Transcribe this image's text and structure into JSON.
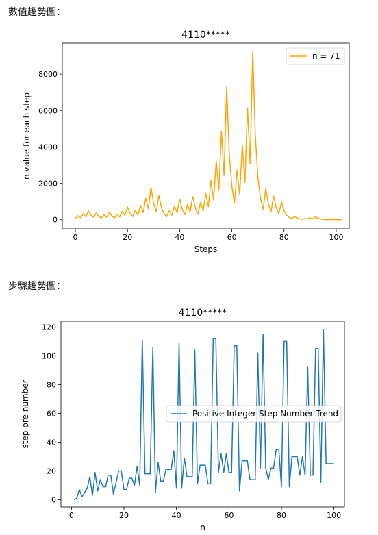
{
  "labels": {
    "section1": "數值趨勢圖：",
    "section2": "步驟趨勢圖："
  },
  "chart_data": [
    {
      "type": "line",
      "title": "4110*****",
      "xlabel": "Steps",
      "ylabel": "n value for each step",
      "xlim": [
        -5,
        105
      ],
      "ylim": [
        -500,
        9700
      ],
      "xticks": [
        0,
        20,
        40,
        60,
        80,
        100
      ],
      "yticks": [
        0,
        2000,
        4000,
        6000,
        8000
      ],
      "legend_position": "top-right",
      "color": "#ffa500",
      "series": [
        {
          "name": "n = 71",
          "x": [
            0,
            1,
            2,
            3,
            4,
            5,
            6,
            7,
            8,
            9,
            10,
            11,
            12,
            13,
            14,
            15,
            16,
            17,
            18,
            19,
            20,
            21,
            22,
            23,
            24,
            25,
            26,
            27,
            28,
            29,
            30,
            31,
            32,
            33,
            34,
            35,
            36,
            37,
            38,
            39,
            40,
            41,
            42,
            43,
            44,
            45,
            46,
            47,
            48,
            49,
            50,
            51,
            52,
            53,
            54,
            55,
            56,
            57,
            58,
            59,
            60,
            61,
            62,
            63,
            64,
            65,
            66,
            67,
            68,
            69,
            70,
            71,
            72,
            73,
            74,
            75,
            76,
            77,
            78,
            79,
            80,
            81,
            82,
            83,
            84,
            85,
            86,
            87,
            88,
            89,
            90,
            91,
            92,
            93,
            94,
            95,
            96,
            97,
            98,
            99,
            100,
            101,
            102
          ],
          "values": [
            71,
            214,
            107,
            322,
            161,
            484,
            242,
            121,
            364,
            182,
            91,
            274,
            137,
            412,
            206,
            103,
            310,
            155,
            466,
            233,
            700,
            350,
            175,
            526,
            263,
            790,
            395,
            1186,
            593,
            1780,
            890,
            445,
            1336,
            668,
            334,
            167,
            502,
            251,
            754,
            377,
            1132,
            566,
            283,
            850,
            425,
            1276,
            638,
            319,
            958,
            479,
            1438,
            719,
            2158,
            1079,
            3238,
            1619,
            4858,
            2429,
            7288,
            3644,
            1822,
            911,
            2734,
            1367,
            4102,
            2051,
            6154,
            3077,
            9232,
            4616,
            2308,
            1154,
            577,
            1732,
            866,
            433,
            1300,
            650,
            325,
            976,
            488,
            244,
            122,
            61,
            184,
            92,
            46,
            23,
            70,
            35,
            106,
            53,
            160,
            80,
            40,
            20,
            10,
            5,
            16,
            8,
            4,
            2,
            1
          ]
        }
      ]
    },
    {
      "type": "line",
      "title": "4110*****",
      "xlabel": "n",
      "ylabel": "step pre number",
      "xlim": [
        -4,
        104
      ],
      "ylim": [
        -5,
        124
      ],
      "xticks": [
        0,
        20,
        40,
        60,
        80,
        100
      ],
      "yticks": [
        0,
        20,
        40,
        60,
        80,
        100,
        120
      ],
      "legend_position": "center-right",
      "color": "#1f77b4",
      "series": [
        {
          "name": "Positive Integer Step Number Trend",
          "x": [
            1,
            2,
            3,
            4,
            5,
            6,
            7,
            8,
            9,
            10,
            11,
            12,
            13,
            14,
            15,
            16,
            17,
            18,
            19,
            20,
            21,
            22,
            23,
            24,
            25,
            26,
            27,
            28,
            29,
            30,
            31,
            32,
            33,
            34,
            35,
            36,
            37,
            38,
            39,
            40,
            41,
            42,
            43,
            44,
            45,
            46,
            47,
            48,
            49,
            50,
            51,
            52,
            53,
            54,
            55,
            56,
            57,
            58,
            59,
            60,
            61,
            62,
            63,
            64,
            65,
            66,
            67,
            68,
            69,
            70,
            71,
            72,
            73,
            74,
            75,
            76,
            77,
            78,
            79,
            80,
            81,
            82,
            83,
            84,
            85,
            86,
            87,
            88,
            89,
            90,
            91,
            92,
            93,
            94,
            95,
            96,
            97,
            98,
            99,
            100
          ],
          "values": [
            0,
            1,
            7,
            2,
            5,
            8,
            16,
            3,
            19,
            6,
            14,
            9,
            9,
            17,
            17,
            4,
            12,
            20,
            20,
            7,
            7,
            15,
            15,
            10,
            23,
            10,
            111,
            18,
            18,
            18,
            106,
            5,
            26,
            13,
            13,
            21,
            21,
            21,
            34,
            8,
            109,
            8,
            29,
            16,
            16,
            16,
            104,
            11,
            24,
            24,
            24,
            11,
            11,
            112,
            112,
            19,
            32,
            19,
            32,
            19,
            19,
            107,
            107,
            6,
            27,
            27,
            27,
            14,
            14,
            14,
            102,
            22,
            115,
            22,
            14,
            22,
            22,
            35,
            35,
            9,
            110,
            110,
            9,
            30,
            30,
            30,
            17,
            30,
            17,
            92,
            17,
            17,
            105,
            105,
            12,
            118,
            25,
            25,
            25,
            25
          ]
        }
      ]
    }
  ]
}
